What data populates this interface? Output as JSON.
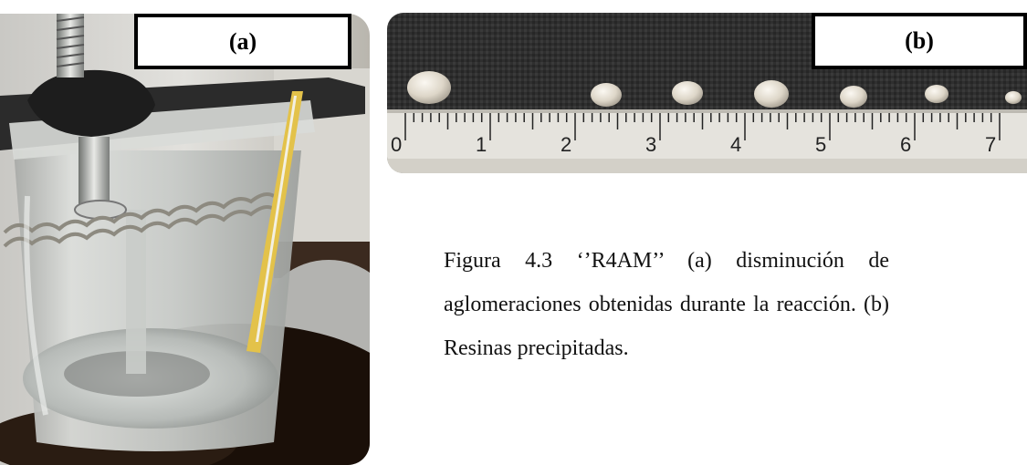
{
  "figure": {
    "panel_a": {
      "label": "(a)"
    },
    "panel_b": {
      "label": "(b)",
      "ruler_numbers": [
        "0",
        "1",
        "2",
        "3",
        "4",
        "5",
        "6",
        "7"
      ]
    },
    "caption": "Figura 4.3 ‘’R4AM’’ (a) disminución de aglomeraciones obtenidas durante la reacción. (b) Resinas precipitadas."
  }
}
